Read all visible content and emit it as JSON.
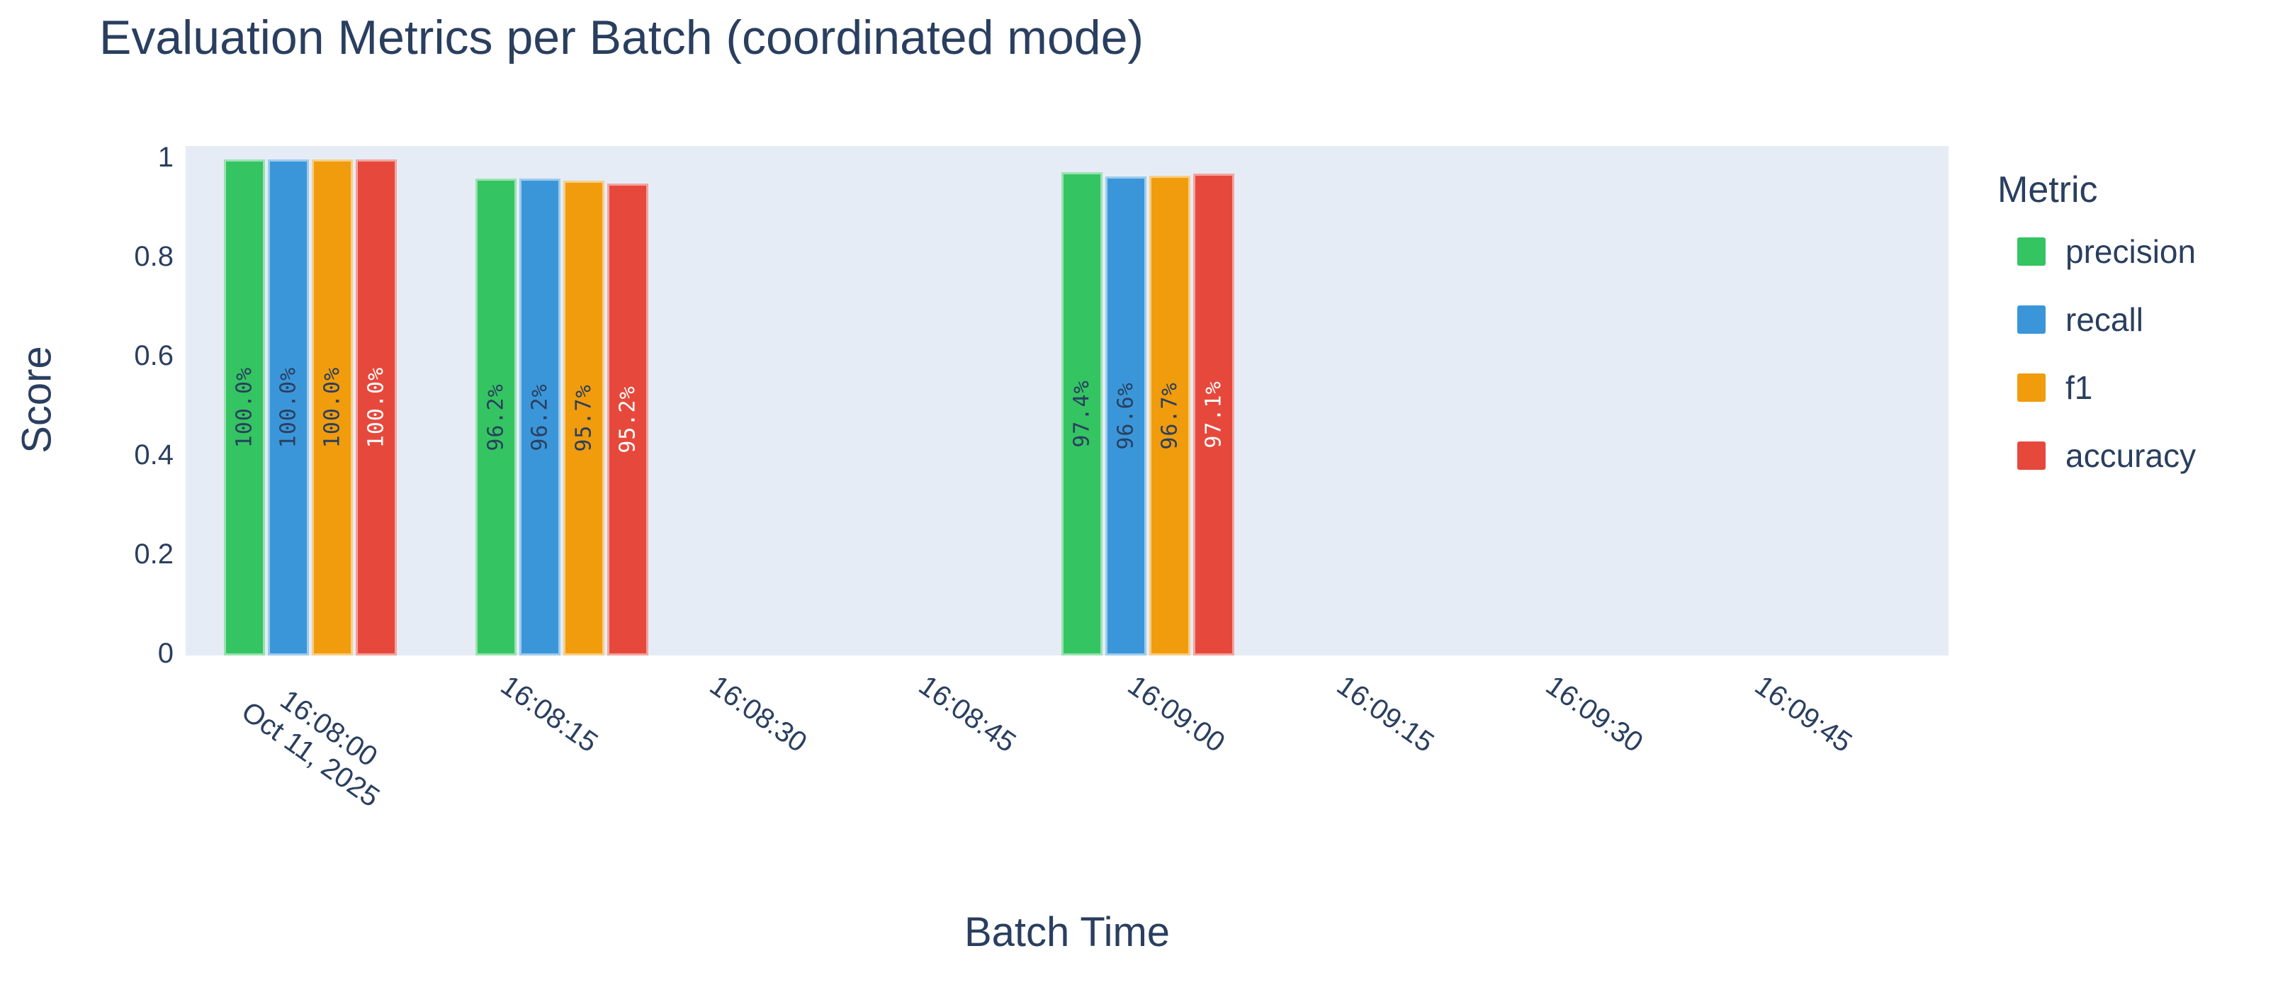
{
  "title": "Evaluation Metrics per Batch (coordinated mode)",
  "colors": {
    "paper_bg": "#ffffff",
    "plot_bg": "#e5ecf6",
    "grid": "#ffffff",
    "text": "#2a3f5f",
    "bar_label_dark": "#2a3f5f",
    "bar_label_light": "#ffffff",
    "precision": "#34c461",
    "recall": "#3a96d9",
    "f1": "#f09c0c",
    "accuracy": "#e6493c"
  },
  "chart_data": {
    "type": "bar",
    "title": "Evaluation Metrics per Batch (coordinated mode)",
    "xlabel": "Batch Time",
    "ylabel": "Score",
    "ylim": [
      0,
      1.03
    ],
    "grid": "horizontal-only",
    "legend_position": "right",
    "legend": {
      "title": "Metric",
      "entries": [
        {
          "name": "precision",
          "color": "#34c461"
        },
        {
          "name": "recall",
          "color": "#3a96d9"
        },
        {
          "name": "f1",
          "color": "#f09c0c"
        },
        {
          "name": "accuracy",
          "color": "#e6493c"
        }
      ]
    },
    "yticks": [
      {
        "value": 0.0,
        "label": "0"
      },
      {
        "value": 0.2,
        "label": "0.2"
      },
      {
        "value": 0.4,
        "label": "0.4"
      },
      {
        "value": 0.6,
        "label": "0.6"
      },
      {
        "value": 0.8,
        "label": "0.8"
      },
      {
        "value": 1.0,
        "label": "1"
      }
    ],
    "xticks": [
      {
        "label": "16:08:00",
        "sublabel": "Oct 11, 2025"
      },
      {
        "label": "16:08:15"
      },
      {
        "label": "16:08:30"
      },
      {
        "label": "16:08:45"
      },
      {
        "label": "16:09:00"
      },
      {
        "label": "16:09:15"
      },
      {
        "label": "16:09:30"
      },
      {
        "label": "16:09:45"
      }
    ],
    "series": [
      {
        "name": "precision",
        "values_pct": [
          100.0,
          96.2,
          97.4
        ]
      },
      {
        "name": "recall",
        "values_pct": [
          100.0,
          96.2,
          96.6
        ]
      },
      {
        "name": "f1",
        "values_pct": [
          100.0,
          95.7,
          96.7
        ]
      },
      {
        "name": "accuracy",
        "values_pct": [
          100.0,
          95.2,
          97.1
        ]
      }
    ],
    "groups": [
      {
        "near_tick": "16:08:00",
        "x_frac": 0.0707,
        "bars": [
          {
            "metric": "precision",
            "value": 1.0,
            "label": "100.0%",
            "label_tone": "dark"
          },
          {
            "metric": "recall",
            "value": 1.0,
            "label": "100.0%",
            "label_tone": "dark"
          },
          {
            "metric": "f1",
            "value": 1.0,
            "label": "100.0%",
            "label_tone": "dark"
          },
          {
            "metric": "accuracy",
            "value": 1.0,
            "label": "100.0%",
            "label_tone": "light"
          }
        ]
      },
      {
        "near_tick": "16:08:15",
        "x_frac": 0.2134,
        "bars": [
          {
            "metric": "precision",
            "value": 0.962,
            "label": "96.2%",
            "label_tone": "dark"
          },
          {
            "metric": "recall",
            "value": 0.962,
            "label": "96.2%",
            "label_tone": "dark"
          },
          {
            "metric": "f1",
            "value": 0.957,
            "label": "95.7%",
            "label_tone": "dark"
          },
          {
            "metric": "accuracy",
            "value": 0.952,
            "label": "95.2%",
            "label_tone": "light"
          }
        ]
      },
      {
        "near_tick": "16:09:00",
        "x_frac": 0.5458,
        "bars": [
          {
            "metric": "precision",
            "value": 0.974,
            "label": "97.4%",
            "label_tone": "dark"
          },
          {
            "metric": "recall",
            "value": 0.966,
            "label": "96.6%",
            "label_tone": "dark"
          },
          {
            "metric": "f1",
            "value": 0.967,
            "label": "96.7%",
            "label_tone": "dark"
          },
          {
            "metric": "accuracy",
            "value": 0.971,
            "label": "97.1%",
            "label_tone": "light"
          }
        ]
      }
    ]
  }
}
